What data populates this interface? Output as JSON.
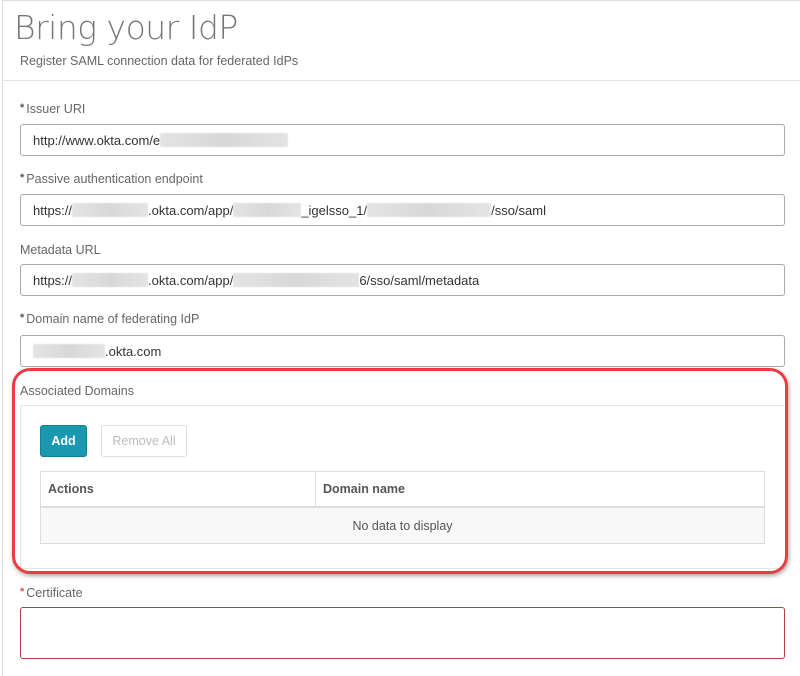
{
  "header": {
    "title": "Bring your IdP",
    "subtitle": "Register SAML connection data for federated IdPs"
  },
  "fields": {
    "issuer": {
      "label": "Issuer URI",
      "required": true,
      "value_parts": [
        "http://www.okta.com/e"
      ]
    },
    "passive": {
      "label": "Passive authentication endpoint",
      "required": true,
      "value_parts": [
        "https://",
        ".okta.com/app/",
        "_igelsso_1/",
        "/sso/saml"
      ]
    },
    "metadata": {
      "label": "Metadata URL",
      "required": false,
      "value_parts": [
        "https://",
        ".okta.com/app/",
        "6/sso/saml/metadata"
      ]
    },
    "domain": {
      "label": "Domain name of federating IdP",
      "required": true,
      "value_parts": [
        ".okta.com"
      ]
    },
    "certificate": {
      "label": "Certificate",
      "required": true,
      "value": ""
    }
  },
  "associated_domains": {
    "label": "Associated Domains",
    "add_label": "Add",
    "remove_all_label": "Remove All",
    "columns": [
      "Actions",
      "Domain name"
    ],
    "empty_text": "No data to display"
  },
  "colors": {
    "accent": "#1a98b0",
    "highlight": "#ec3b43",
    "error_border": "#a94442"
  }
}
